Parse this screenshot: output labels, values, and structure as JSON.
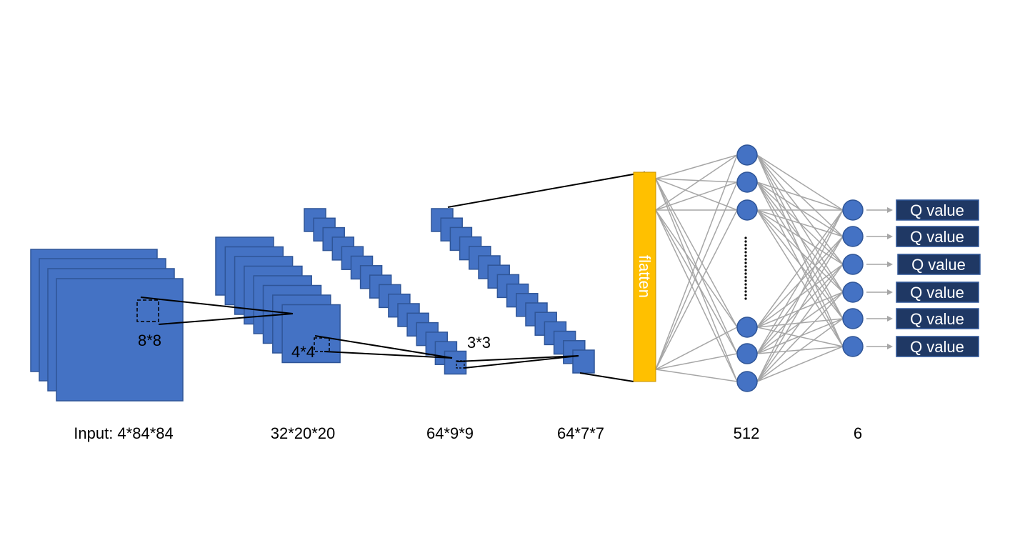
{
  "colors": {
    "feature_map": "#4472c4",
    "feature_map_border": "#2f5597",
    "node": "#4472c4",
    "flatten_bar": "#ffc000",
    "output_box": "#1f3864",
    "connection": "#a6a6a6",
    "projection_line": "#000000"
  },
  "layers": {
    "input_label": "Input: 4*84*84",
    "conv1_label": "32*20*20",
    "conv2_label": "64*9*9",
    "conv3_label": "64*7*7",
    "fc_label": "512",
    "out_label": "6"
  },
  "kernels": {
    "k1": "8*8",
    "k2": "4*4",
    "k3": "3*3"
  },
  "flatten": {
    "label": "flatten"
  },
  "outputs": [
    "Q value",
    "Q value",
    "Q value",
    "Q value",
    "Q value",
    "Q value"
  ]
}
